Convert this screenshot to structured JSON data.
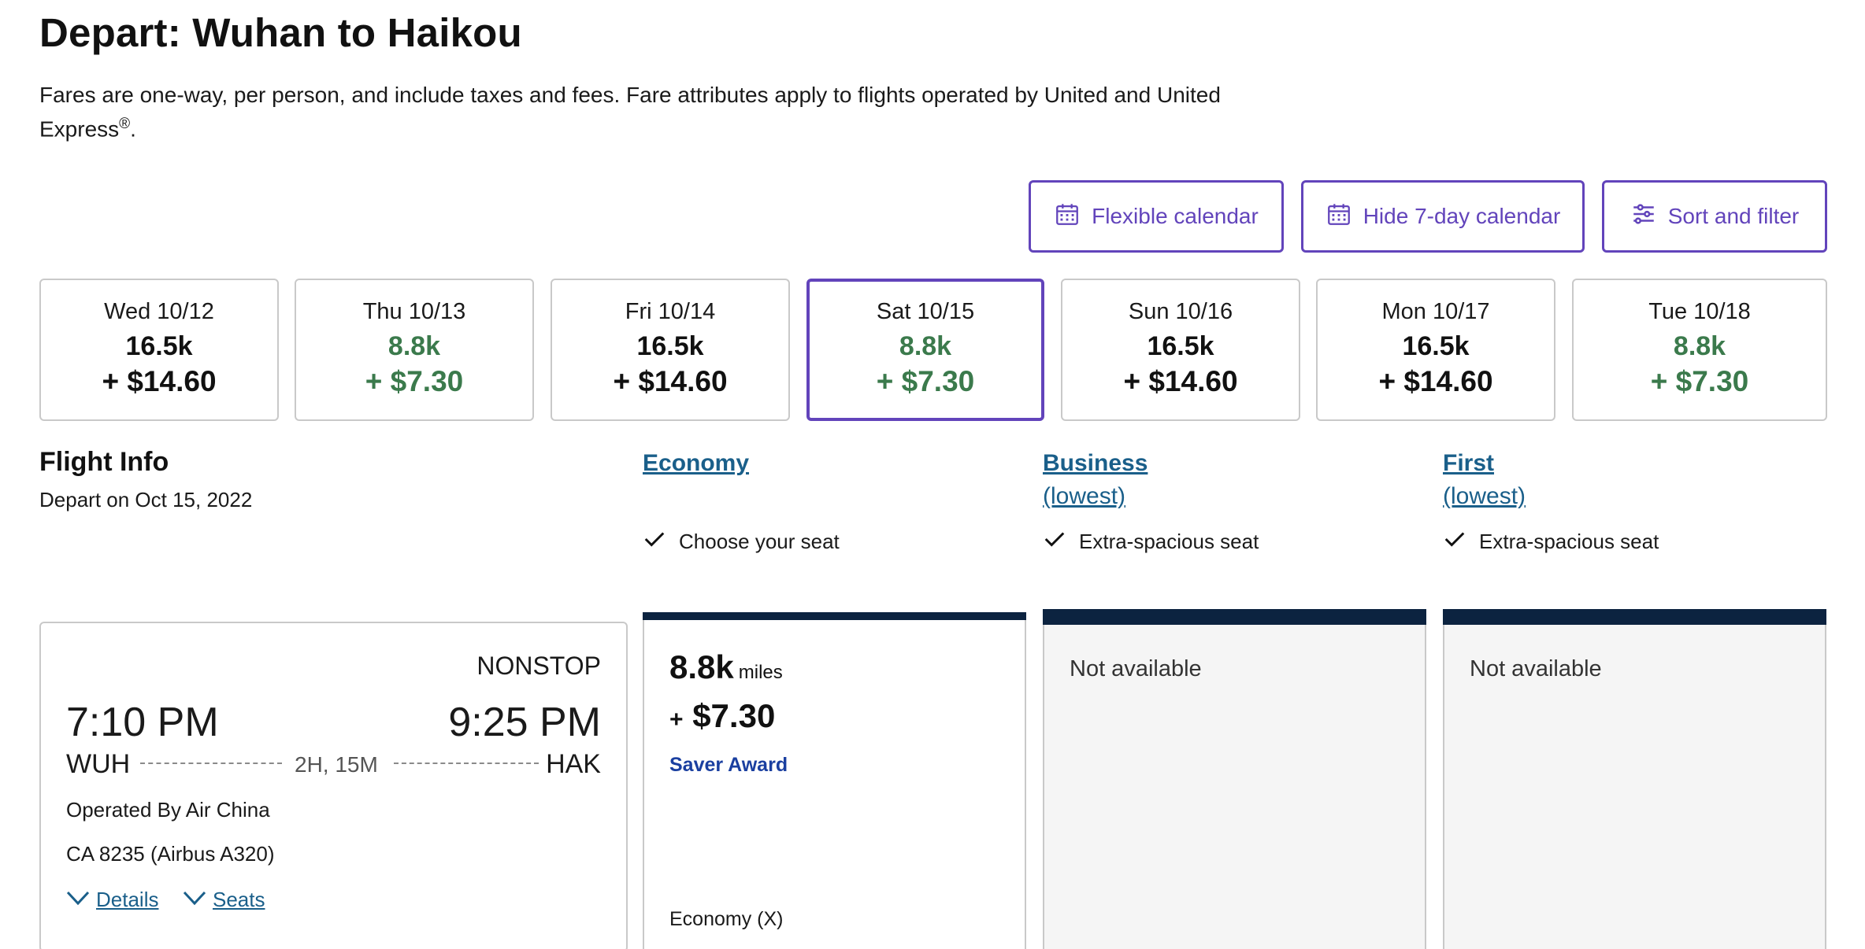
{
  "header": {
    "title": "Depart: Wuhan to Haikou",
    "subtitle_main": "Fares are one-way, per person, and include taxes and fees. Fare attributes apply to flights operated by United and United Express",
    "subtitle_reg": "®",
    "subtitle_end": "."
  },
  "toolbar": {
    "flexible_calendar": "Flexible calendar",
    "hide_calendar": "Hide 7-day calendar",
    "sort_filter": "Sort and filter",
    "accent_color": "#6244bb"
  },
  "calendar": {
    "days": [
      {
        "date": "Wed 10/12",
        "miles": "16.5k",
        "price": "+ $14.60"
      },
      {
        "date": "Thu 10/13",
        "miles": "8.8k",
        "price": "+ $7.30"
      },
      {
        "date": "Fri 10/14",
        "miles": "16.5k",
        "price": "+ $14.60"
      },
      {
        "date": "Sat 10/15",
        "miles": "8.8k",
        "price": "+ $7.30"
      },
      {
        "date": "Sun 10/16",
        "miles": "16.5k",
        "price": "+ $14.60"
      },
      {
        "date": "Mon 10/17",
        "miles": "16.5k",
        "price": "+ $14.60"
      },
      {
        "date": "Tue 10/18",
        "miles": "8.8k",
        "price": "+ $7.30"
      }
    ],
    "selected_index": 3,
    "low_fare_color": "#3b7a4c"
  },
  "flight_info": {
    "title": "Flight Info",
    "date": "Depart on Oct 15, 2022"
  },
  "cabins": {
    "economy": {
      "label": "Economy",
      "feature": "Choose your seat"
    },
    "business": {
      "label": "Business",
      "sub": "(lowest)",
      "feature": "Extra-spacious seat"
    },
    "first": {
      "label": "First",
      "sub": "(lowest)",
      "feature": "Extra-spacious seat"
    }
  },
  "flight": {
    "stops": "NONSTOP",
    "depart_time": "7:10 PM",
    "arrive_time": "9:25 PM",
    "depart_code": "WUH",
    "arrive_code": "HAK",
    "duration": "2H, 15M",
    "operated_by": "Operated By Air China",
    "flight_number": "CA 8235 (Airbus A320)",
    "details_label": "Details",
    "seats_label": "Seats"
  },
  "fares": {
    "economy": {
      "miles": "8.8k",
      "miles_unit": "miles",
      "plus": "+",
      "cash": "$7.30",
      "award": "Saver Award",
      "fare_class": "Economy (X)"
    },
    "business": {
      "status": "Not available"
    },
    "first": {
      "status": "Not available"
    }
  }
}
